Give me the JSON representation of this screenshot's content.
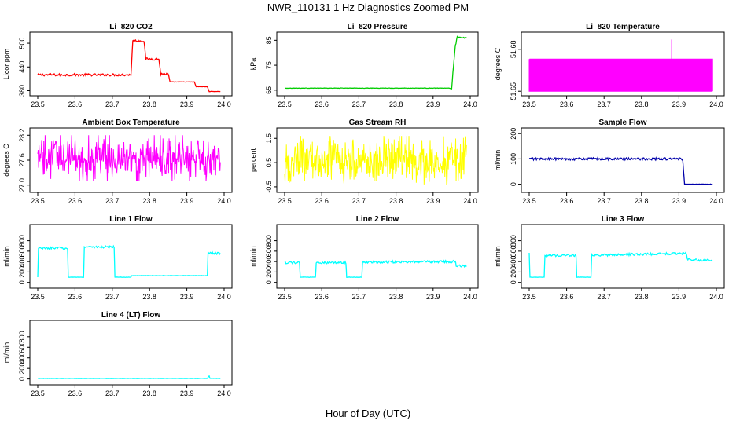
{
  "figure": {
    "title": "NWR_110131  1 Hz Diagnostics Zoomed PM",
    "xlabel": "Hour of Day (UTC)"
  },
  "chart_data": [
    {
      "type": "line",
      "title": "Li–820 CO2",
      "ylabel": "Licor ppm",
      "color": "#ff0000",
      "xlim": [
        23.5,
        24.0
      ],
      "ylim": [
        375,
        520
      ],
      "xticks": [
        23.5,
        23.6,
        23.7,
        23.8,
        23.9,
        24.0
      ],
      "xtick_labels": [
        "23.5",
        "23.6",
        "23.7",
        "23.8",
        "23.9",
        "24.0"
      ],
      "yticks": [
        380,
        440,
        500
      ],
      "ytick_labels": [
        "380",
        "440",
        "500"
      ],
      "series": [
        {
          "x": [
            23.5,
            23.75,
            23.755,
            23.785,
            23.79,
            23.825,
            23.83,
            23.85,
            23.855,
            23.92,
            23.925,
            23.955,
            23.96,
            23.99
          ],
          "values": [
            420,
            420,
            506,
            506,
            460,
            460,
            422,
            422,
            402,
            402,
            390,
            390,
            378,
            378
          ]
        }
      ]
    },
    {
      "type": "line",
      "title": "Li–820 Pressure",
      "ylabel": "kPa",
      "color": "#00cc00",
      "xlim": [
        23.5,
        24.0
      ],
      "ylim": [
        64,
        87
      ],
      "xticks": [
        23.5,
        23.6,
        23.7,
        23.8,
        23.9,
        24.0
      ],
      "xtick_labels": [
        "23.5",
        "23.6",
        "23.7",
        "23.8",
        "23.9",
        "24.0"
      ],
      "yticks": [
        65,
        75,
        85
      ],
      "ytick_labels": [
        "65",
        "75",
        "85"
      ],
      "series": [
        {
          "x": [
            23.5,
            23.945,
            23.95,
            23.955,
            23.96,
            23.965,
            23.99
          ],
          "values": [
            65.8,
            65.8,
            65.5,
            75,
            83,
            86,
            86
          ]
        }
      ]
    },
    {
      "type": "line",
      "title": "Li–820 Temperature",
      "ylabel": "degrees C",
      "color": "#ff00ff",
      "xlim": [
        23.5,
        24.0
      ],
      "ylim": [
        51.649,
        51.69
      ],
      "xticks": [
        23.5,
        23.6,
        23.7,
        23.8,
        23.9,
        24.0
      ],
      "xtick_labels": [
        "23.5",
        "23.6",
        "23.7",
        "23.8",
        "23.9",
        "24.0"
      ],
      "yticks": [
        51.65,
        51.68
      ],
      "ytick_labels": [
        "51.65",
        "51.68"
      ],
      "series": [
        {
          "x": [
            23.5,
            23.99
          ],
          "values": [
            51.65,
            51.673
          ],
          "note_levels": [
            51.65,
            51.673,
            51.687
          ]
        }
      ]
    },
    {
      "type": "line",
      "title": "Ambient Box Temperature",
      "ylabel": "degrees C",
      "color": "#ff00ff",
      "xlim": [
        23.5,
        24.0
      ],
      "ylim": [
        26.9,
        28.3
      ],
      "xticks": [
        23.5,
        23.6,
        23.7,
        23.8,
        23.9,
        24.0
      ],
      "xtick_labels": [
        "23.5",
        "23.6",
        "23.7",
        "23.8",
        "23.9",
        "24.0"
      ],
      "yticks": [
        27.0,
        27.6,
        28.2
      ],
      "ytick_labels": [
        "27.0",
        "27.6",
        "28.2"
      ],
      "series": [
        {
          "x": [
            23.5,
            23.99
          ],
          "values": [
            27.65,
            27.65
          ],
          "spread": [
            27.1,
            28.2
          ]
        }
      ]
    },
    {
      "type": "line",
      "title": "Gas Stream RH",
      "ylabel": "percent",
      "color": "#ffff00",
      "xlim": [
        23.5,
        24.0
      ],
      "ylim": [
        -0.6,
        1.8
      ],
      "xticks": [
        23.5,
        23.6,
        23.7,
        23.8,
        23.9,
        24.0
      ],
      "xtick_labels": [
        "23.5",
        "23.6",
        "23.7",
        "23.8",
        "23.9",
        "24.0"
      ],
      "yticks": [
        -0.5,
        0.5,
        1.5
      ],
      "ytick_labels": [
        "-0.5",
        "0.5",
        "1.5"
      ],
      "series": [
        {
          "x": [
            23.5,
            23.99
          ],
          "values": [
            0.6,
            0.6
          ],
          "spread": [
            -0.4,
            1.6
          ]
        }
      ]
    },
    {
      "type": "line",
      "title": "Sample Flow",
      "ylabel": "ml/min",
      "color": "#0000aa",
      "xlim": [
        23.5,
        24.0
      ],
      "ylim": [
        -20,
        210
      ],
      "xticks": [
        23.5,
        23.6,
        23.7,
        23.8,
        23.9,
        24.0
      ],
      "xtick_labels": [
        "23.5",
        "23.6",
        "23.7",
        "23.8",
        "23.9",
        "24.0"
      ],
      "yticks": [
        0,
        100,
        200
      ],
      "ytick_labels": [
        "0",
        "100",
        "200"
      ],
      "series": [
        {
          "x": [
            23.5,
            23.91,
            23.915,
            23.99
          ],
          "values": [
            100,
            100,
            0,
            0
          ]
        }
      ]
    },
    {
      "type": "line",
      "title": "Line 1 Flow",
      "ylabel": "ml/min",
      "color": "#00ffff",
      "xlim": [
        23.5,
        24.0
      ],
      "ylim": [
        -50,
        1050
      ],
      "xticks": [
        23.5,
        23.6,
        23.7,
        23.8,
        23.9,
        24.0
      ],
      "xtick_labels": [
        "23.5",
        "23.6",
        "23.7",
        "23.8",
        "23.9",
        "24.0"
      ],
      "yticks": [
        0,
        200,
        400,
        600,
        800
      ],
      "ytick_labels": [
        "0",
        "200",
        "400",
        "600",
        "800"
      ],
      "series": [
        {
          "x": [
            23.5,
            23.502,
            23.58,
            23.582,
            23.623,
            23.625,
            23.705,
            23.707,
            23.75,
            23.752,
            23.955,
            23.957,
            23.99
          ],
          "values": [
            100,
            660,
            660,
            100,
            100,
            680,
            680,
            100,
            100,
            130,
            130,
            560,
            560
          ]
        }
      ]
    },
    {
      "type": "line",
      "title": "Line 2 Flow",
      "ylabel": "ml/min",
      "color": "#00ffff",
      "xlim": [
        23.5,
        24.0
      ],
      "ylim": [
        -50,
        1050
      ],
      "xticks": [
        23.5,
        23.6,
        23.7,
        23.8,
        23.9,
        24.0
      ],
      "xtick_labels": [
        "23.5",
        "23.6",
        "23.7",
        "23.8",
        "23.9",
        "24.0"
      ],
      "yticks": [
        0,
        200,
        400,
        600,
        800
      ],
      "ytick_labels": [
        "0",
        "200",
        "400",
        "600",
        "800"
      ],
      "series": [
        {
          "x": [
            23.5,
            23.54,
            23.542,
            23.583,
            23.585,
            23.665,
            23.667,
            23.708,
            23.71,
            23.96,
            23.962,
            23.99
          ],
          "values": [
            380,
            380,
            100,
            100,
            380,
            380,
            100,
            100,
            390,
            400,
            320,
            320
          ]
        }
      ]
    },
    {
      "type": "line",
      "title": "Line 3 Flow",
      "ylabel": "ml/min",
      "color": "#00ffff",
      "xlim": [
        23.5,
        24.0
      ],
      "ylim": [
        -50,
        1050
      ],
      "xticks": [
        23.5,
        23.6,
        23.7,
        23.8,
        23.9,
        24.0
      ],
      "xtick_labels": [
        "23.5",
        "23.6",
        "23.7",
        "23.8",
        "23.9",
        "24.0"
      ],
      "yticks": [
        0,
        200,
        400,
        600,
        800
      ],
      "ytick_labels": [
        "0",
        "200",
        "400",
        "600",
        "800"
      ],
      "series": [
        {
          "x": [
            23.5,
            23.502,
            23.505,
            23.54,
            23.542,
            23.625,
            23.627,
            23.665,
            23.667,
            23.92,
            23.922,
            23.99
          ],
          "values": [
            560,
            100,
            100,
            100,
            520,
            520,
            100,
            100,
            520,
            560,
            440,
            420
          ]
        }
      ]
    },
    {
      "type": "line",
      "title": "Line 4 (LT) Flow",
      "ylabel": "ml/min",
      "color": "#00ffff",
      "xlim": [
        23.5,
        24.0
      ],
      "ylim": [
        -50,
        1050
      ],
      "xticks": [
        23.5,
        23.6,
        23.7,
        23.8,
        23.9,
        24.0
      ],
      "xtick_labels": [
        "23.5",
        "23.6",
        "23.7",
        "23.8",
        "23.9",
        "24.0"
      ],
      "yticks": [
        0,
        200,
        400,
        600,
        800
      ],
      "ytick_labels": [
        "0",
        "200",
        "400",
        "600",
        "800"
      ],
      "series": [
        {
          "x": [
            23.5,
            23.955,
            23.96,
            23.962,
            23.99
          ],
          "values": [
            10,
            10,
            60,
            10,
            10
          ]
        }
      ]
    }
  ]
}
